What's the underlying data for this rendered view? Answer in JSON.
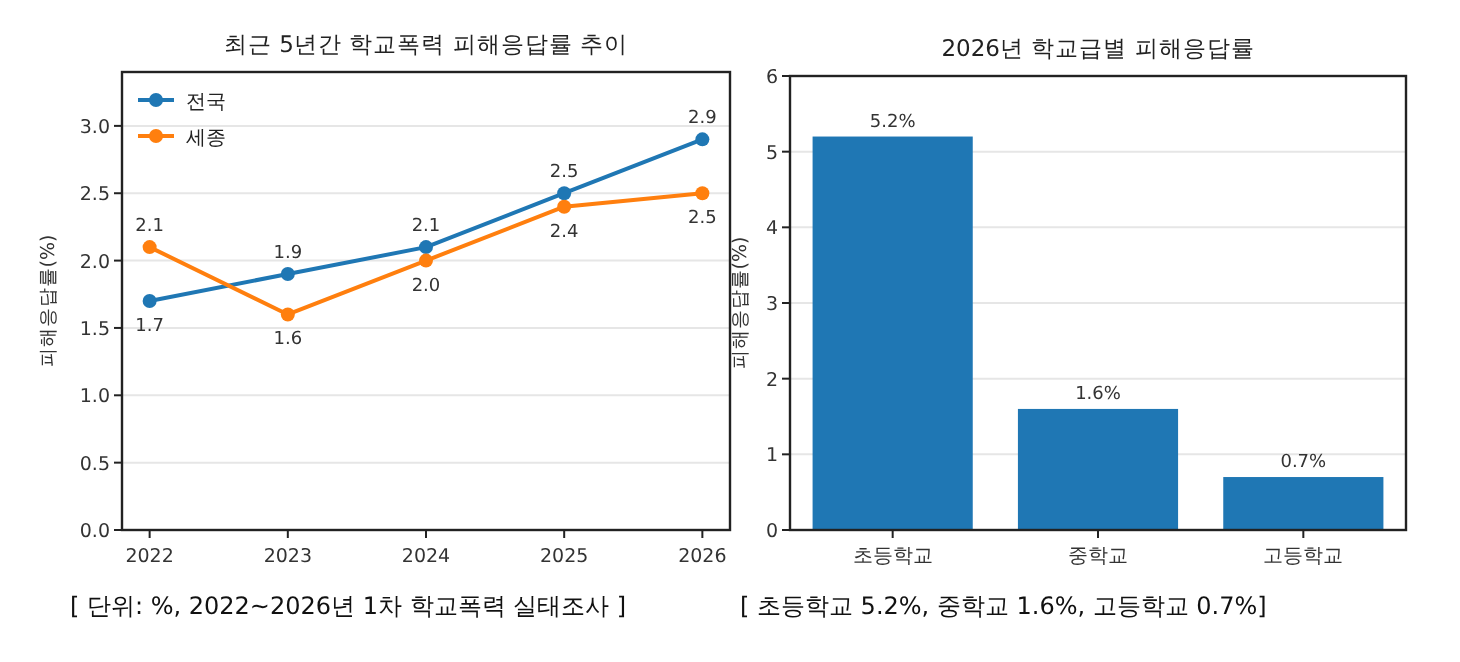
{
  "chart_data": [
    {
      "type": "line",
      "title": "최근 5년간 학교폭력 피해응답률 추이",
      "ylabel": "피해응답률(%)",
      "x": [
        2022,
        2023,
        2024,
        2025,
        2026
      ],
      "series": [
        {
          "name": "전국",
          "color": "#1f77b4",
          "values": [
            1.7,
            1.9,
            2.1,
            2.5,
            2.9
          ],
          "value_labels": [
            "1.7",
            "1.9",
            "2.1",
            "2.5",
            "2.9"
          ]
        },
        {
          "name": "세종",
          "color": "#ff7f0e",
          "values": [
            2.1,
            1.6,
            2.0,
            2.4,
            2.5
          ],
          "value_labels": [
            "2.1",
            "1.6",
            "2.0",
            "2.4",
            "2.5"
          ]
        }
      ],
      "xlim": [
        2021.8,
        2026.2
      ],
      "xticks": [
        2022,
        2023,
        2024,
        2025,
        2026
      ],
      "ylim": [
        0,
        3.4
      ],
      "yticks": [
        {
          "value": 0,
          "label": "0.0"
        },
        {
          "value": 0.5,
          "label": "0.5"
        },
        {
          "value": 1,
          "label": "1.0"
        },
        {
          "value": 1.5,
          "label": "1.5"
        },
        {
          "value": 2,
          "label": "2.0"
        },
        {
          "value": 2.5,
          "label": "2.5"
        },
        {
          "value": 3,
          "label": "3.0"
        }
      ],
      "grid": "y",
      "legend": "top left",
      "marker": "circle",
      "annotations": [
        "[ 단위: %, 2022~2026년 1차 학교폭력 실태조사 ]"
      ]
    },
    {
      "type": "bar",
      "title": "2026년 학교급별 피해응답률",
      "ylabel": "피해응답률(%)",
      "categories": [
        "초등학교",
        "중학교",
        "고등학교"
      ],
      "values": [
        5.2,
        1.6,
        0.7
      ],
      "color": "#1f77b4",
      "value_labels": [
        "5.2%",
        "1.6%",
        "0.7%"
      ],
      "ylim": [
        0,
        6
      ],
      "yticks": [
        0,
        1,
        2,
        3,
        4,
        5,
        6
      ],
      "grid": "y",
      "annotations": [
        "[ 초등학교 5.2%, 중학교 1.6%, 고등학교 0.7%]"
      ]
    }
  ]
}
